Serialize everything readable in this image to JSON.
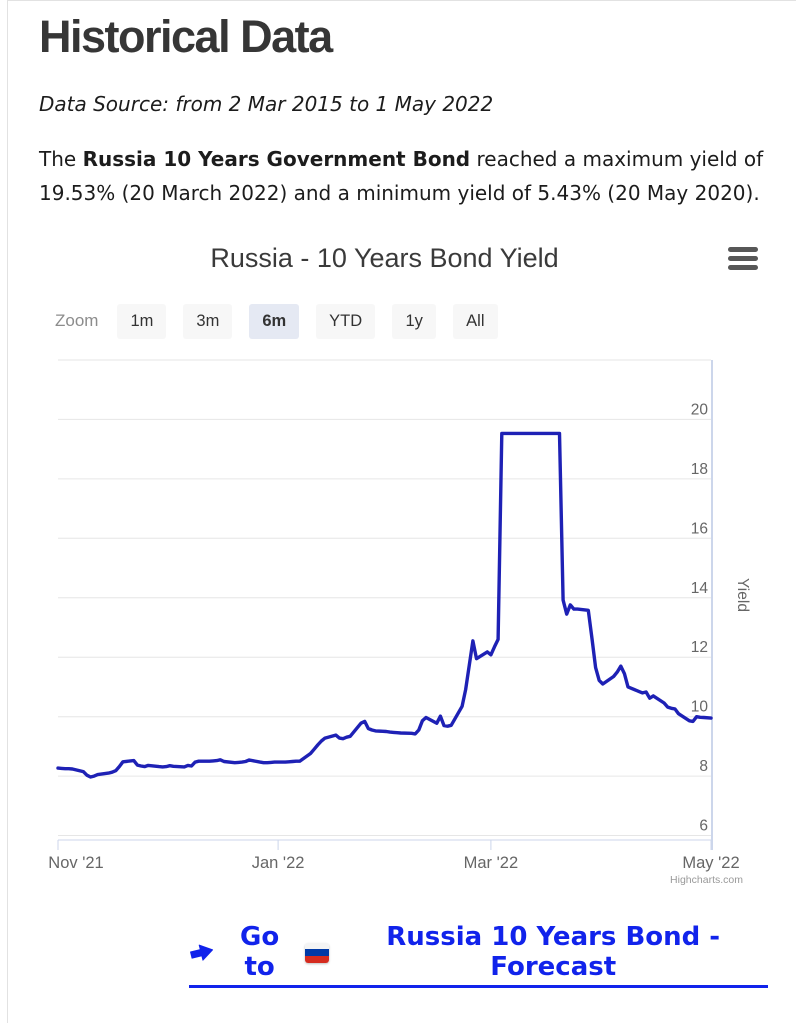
{
  "page": {
    "title": "Historical Data",
    "data_source": "Data Source: from 2 Mar 2015 to 1 May 2022",
    "paragraph": {
      "prefix": "The ",
      "bold": "Russia 10 Years Government Bond",
      "suffix": " reached a maximum yield of 19.53% (20 March 2022) and a minimum yield of 5.43% (20 May 2020)."
    }
  },
  "chart": {
    "title": "Russia - 10 Years Bond Yield",
    "zoom_label": "Zoom",
    "zoom_buttons": [
      "1m",
      "3m",
      "6m",
      "YTD",
      "1y",
      "All"
    ],
    "selected_zoom": "6m",
    "credits": "Highcharts.com",
    "line_color": "#1e21b5",
    "grid_color": "#e6e6e6",
    "axis_color": "#ccd6eb",
    "label_color": "#666666"
  },
  "chart_data": {
    "type": "line",
    "title": "Russia - 10 Years Bond Yield",
    "xlabel": "",
    "ylabel": "Yield",
    "legend": false,
    "grid": true,
    "ylim": [
      5.85,
      22
    ],
    "yticks": [
      6,
      8,
      10,
      12,
      14,
      16,
      18,
      20
    ],
    "xlim": [
      "2021-11-01",
      "2022-05-01"
    ],
    "xticks": [
      {
        "t": "2021-11-01",
        "label": "Nov '21"
      },
      {
        "t": "2022-01-01",
        "label": "Jan '22"
      },
      {
        "t": "2022-03-01",
        "label": "Mar '22"
      },
      {
        "t": "2022-05-01",
        "label": "May '22"
      }
    ],
    "series": [
      {
        "name": "Yield",
        "color": "#1e21b5",
        "data": [
          [
            "2021-11-01",
            8.27
          ],
          [
            "2021-11-02",
            8.26
          ],
          [
            "2021-11-03",
            8.25
          ],
          [
            "2021-11-04",
            8.25
          ],
          [
            "2021-11-05",
            8.24
          ],
          [
            "2021-11-08",
            8.15
          ],
          [
            "2021-11-09",
            8.03
          ],
          [
            "2021-11-10",
            7.97
          ],
          [
            "2021-11-11",
            8.0
          ],
          [
            "2021-11-12",
            8.05
          ],
          [
            "2021-11-15",
            8.1
          ],
          [
            "2021-11-16",
            8.13
          ],
          [
            "2021-11-17",
            8.18
          ],
          [
            "2021-11-18",
            8.32
          ],
          [
            "2021-11-19",
            8.48
          ],
          [
            "2021-11-22",
            8.52
          ],
          [
            "2021-11-23",
            8.37
          ],
          [
            "2021-11-24",
            8.34
          ],
          [
            "2021-11-25",
            8.32
          ],
          [
            "2021-11-26",
            8.36
          ],
          [
            "2021-11-29",
            8.32
          ],
          [
            "2021-11-30",
            8.31
          ],
          [
            "2021-12-01",
            8.32
          ],
          [
            "2021-12-02",
            8.35
          ],
          [
            "2021-12-03",
            8.33
          ],
          [
            "2021-12-06",
            8.31
          ],
          [
            "2021-12-07",
            8.36
          ],
          [
            "2021-12-08",
            8.34
          ],
          [
            "2021-12-09",
            8.47
          ],
          [
            "2021-12-10",
            8.5
          ],
          [
            "2021-12-13",
            8.5
          ],
          [
            "2021-12-14",
            8.51
          ],
          [
            "2021-12-15",
            8.52
          ],
          [
            "2021-12-16",
            8.55
          ],
          [
            "2021-12-17",
            8.49
          ],
          [
            "2021-12-20",
            8.45
          ],
          [
            "2021-12-21",
            8.46
          ],
          [
            "2021-12-22",
            8.47
          ],
          [
            "2021-12-23",
            8.49
          ],
          [
            "2021-12-24",
            8.54
          ],
          [
            "2021-12-27",
            8.47
          ],
          [
            "2021-12-28",
            8.45
          ],
          [
            "2021-12-29",
            8.45
          ],
          [
            "2021-12-30",
            8.46
          ],
          [
            "2021-12-31",
            8.47
          ],
          [
            "2022-01-03",
            8.47
          ],
          [
            "2022-01-04",
            8.48
          ],
          [
            "2022-01-05",
            8.49
          ],
          [
            "2022-01-06",
            8.5
          ],
          [
            "2022-01-07",
            8.5
          ],
          [
            "2022-01-10",
            8.76
          ],
          [
            "2022-01-11",
            8.9
          ],
          [
            "2022-01-12",
            9.05
          ],
          [
            "2022-01-13",
            9.18
          ],
          [
            "2022-01-14",
            9.28
          ],
          [
            "2022-01-17",
            9.38
          ],
          [
            "2022-01-18",
            9.28
          ],
          [
            "2022-01-19",
            9.26
          ],
          [
            "2022-01-20",
            9.31
          ],
          [
            "2022-01-21",
            9.34
          ],
          [
            "2022-01-24",
            9.78
          ],
          [
            "2022-01-25",
            9.84
          ],
          [
            "2022-01-26",
            9.6
          ],
          [
            "2022-01-27",
            9.55
          ],
          [
            "2022-01-28",
            9.52
          ],
          [
            "2022-01-31",
            9.5
          ],
          [
            "2022-02-01",
            9.48
          ],
          [
            "2022-02-02",
            9.47
          ],
          [
            "2022-02-03",
            9.46
          ],
          [
            "2022-02-04",
            9.45
          ],
          [
            "2022-02-07",
            9.44
          ],
          [
            "2022-02-08",
            9.42
          ],
          [
            "2022-02-09",
            9.55
          ],
          [
            "2022-02-10",
            9.86
          ],
          [
            "2022-02-11",
            9.97
          ],
          [
            "2022-02-14",
            9.78
          ],
          [
            "2022-02-15",
            10.02
          ],
          [
            "2022-02-16",
            9.7
          ],
          [
            "2022-02-17",
            9.68
          ],
          [
            "2022-02-18",
            9.71
          ],
          [
            "2022-02-21",
            10.35
          ],
          [
            "2022-02-22",
            10.92
          ],
          [
            "2022-02-24",
            12.55
          ],
          [
            "2022-02-25",
            11.95
          ],
          [
            "2022-02-28",
            12.18
          ],
          [
            "2022-03-01",
            12.08
          ],
          [
            "2022-03-02",
            12.35
          ],
          [
            "2022-03-03",
            12.6
          ],
          [
            "2022-03-04",
            19.53
          ],
          [
            "2022-03-07",
            19.53
          ],
          [
            "2022-03-09",
            19.53
          ],
          [
            "2022-03-11",
            19.53
          ],
          [
            "2022-03-14",
            19.53
          ],
          [
            "2022-03-16",
            19.53
          ],
          [
            "2022-03-18",
            19.53
          ],
          [
            "2022-03-20",
            19.53
          ],
          [
            "2022-03-21",
            13.92
          ],
          [
            "2022-03-22",
            13.45
          ],
          [
            "2022-03-23",
            13.76
          ],
          [
            "2022-03-24",
            13.62
          ],
          [
            "2022-03-25",
            13.62
          ],
          [
            "2022-03-28",
            13.58
          ],
          [
            "2022-03-29",
            12.65
          ],
          [
            "2022-03-30",
            11.65
          ],
          [
            "2022-03-31",
            11.22
          ],
          [
            "2022-04-01",
            11.1
          ],
          [
            "2022-04-04",
            11.35
          ],
          [
            "2022-04-05",
            11.5
          ],
          [
            "2022-04-06",
            11.7
          ],
          [
            "2022-04-07",
            11.45
          ],
          [
            "2022-04-08",
            11.0
          ],
          [
            "2022-04-11",
            10.85
          ],
          [
            "2022-04-12",
            10.8
          ],
          [
            "2022-04-13",
            10.83
          ],
          [
            "2022-04-14",
            10.62
          ],
          [
            "2022-04-15",
            10.7
          ],
          [
            "2022-04-18",
            10.46
          ],
          [
            "2022-04-19",
            10.32
          ],
          [
            "2022-04-20",
            10.28
          ],
          [
            "2022-04-21",
            10.26
          ],
          [
            "2022-04-22",
            10.1
          ],
          [
            "2022-04-25",
            9.86
          ],
          [
            "2022-04-26",
            9.84
          ],
          [
            "2022-04-27",
            10.0
          ],
          [
            "2022-04-28",
            9.98
          ],
          [
            "2022-04-29",
            9.97
          ],
          [
            "2022-05-01",
            9.95
          ]
        ]
      }
    ]
  },
  "footer": {
    "go_text": "Go to",
    "link_text": "Russia 10 Years Bond - Forecast"
  }
}
